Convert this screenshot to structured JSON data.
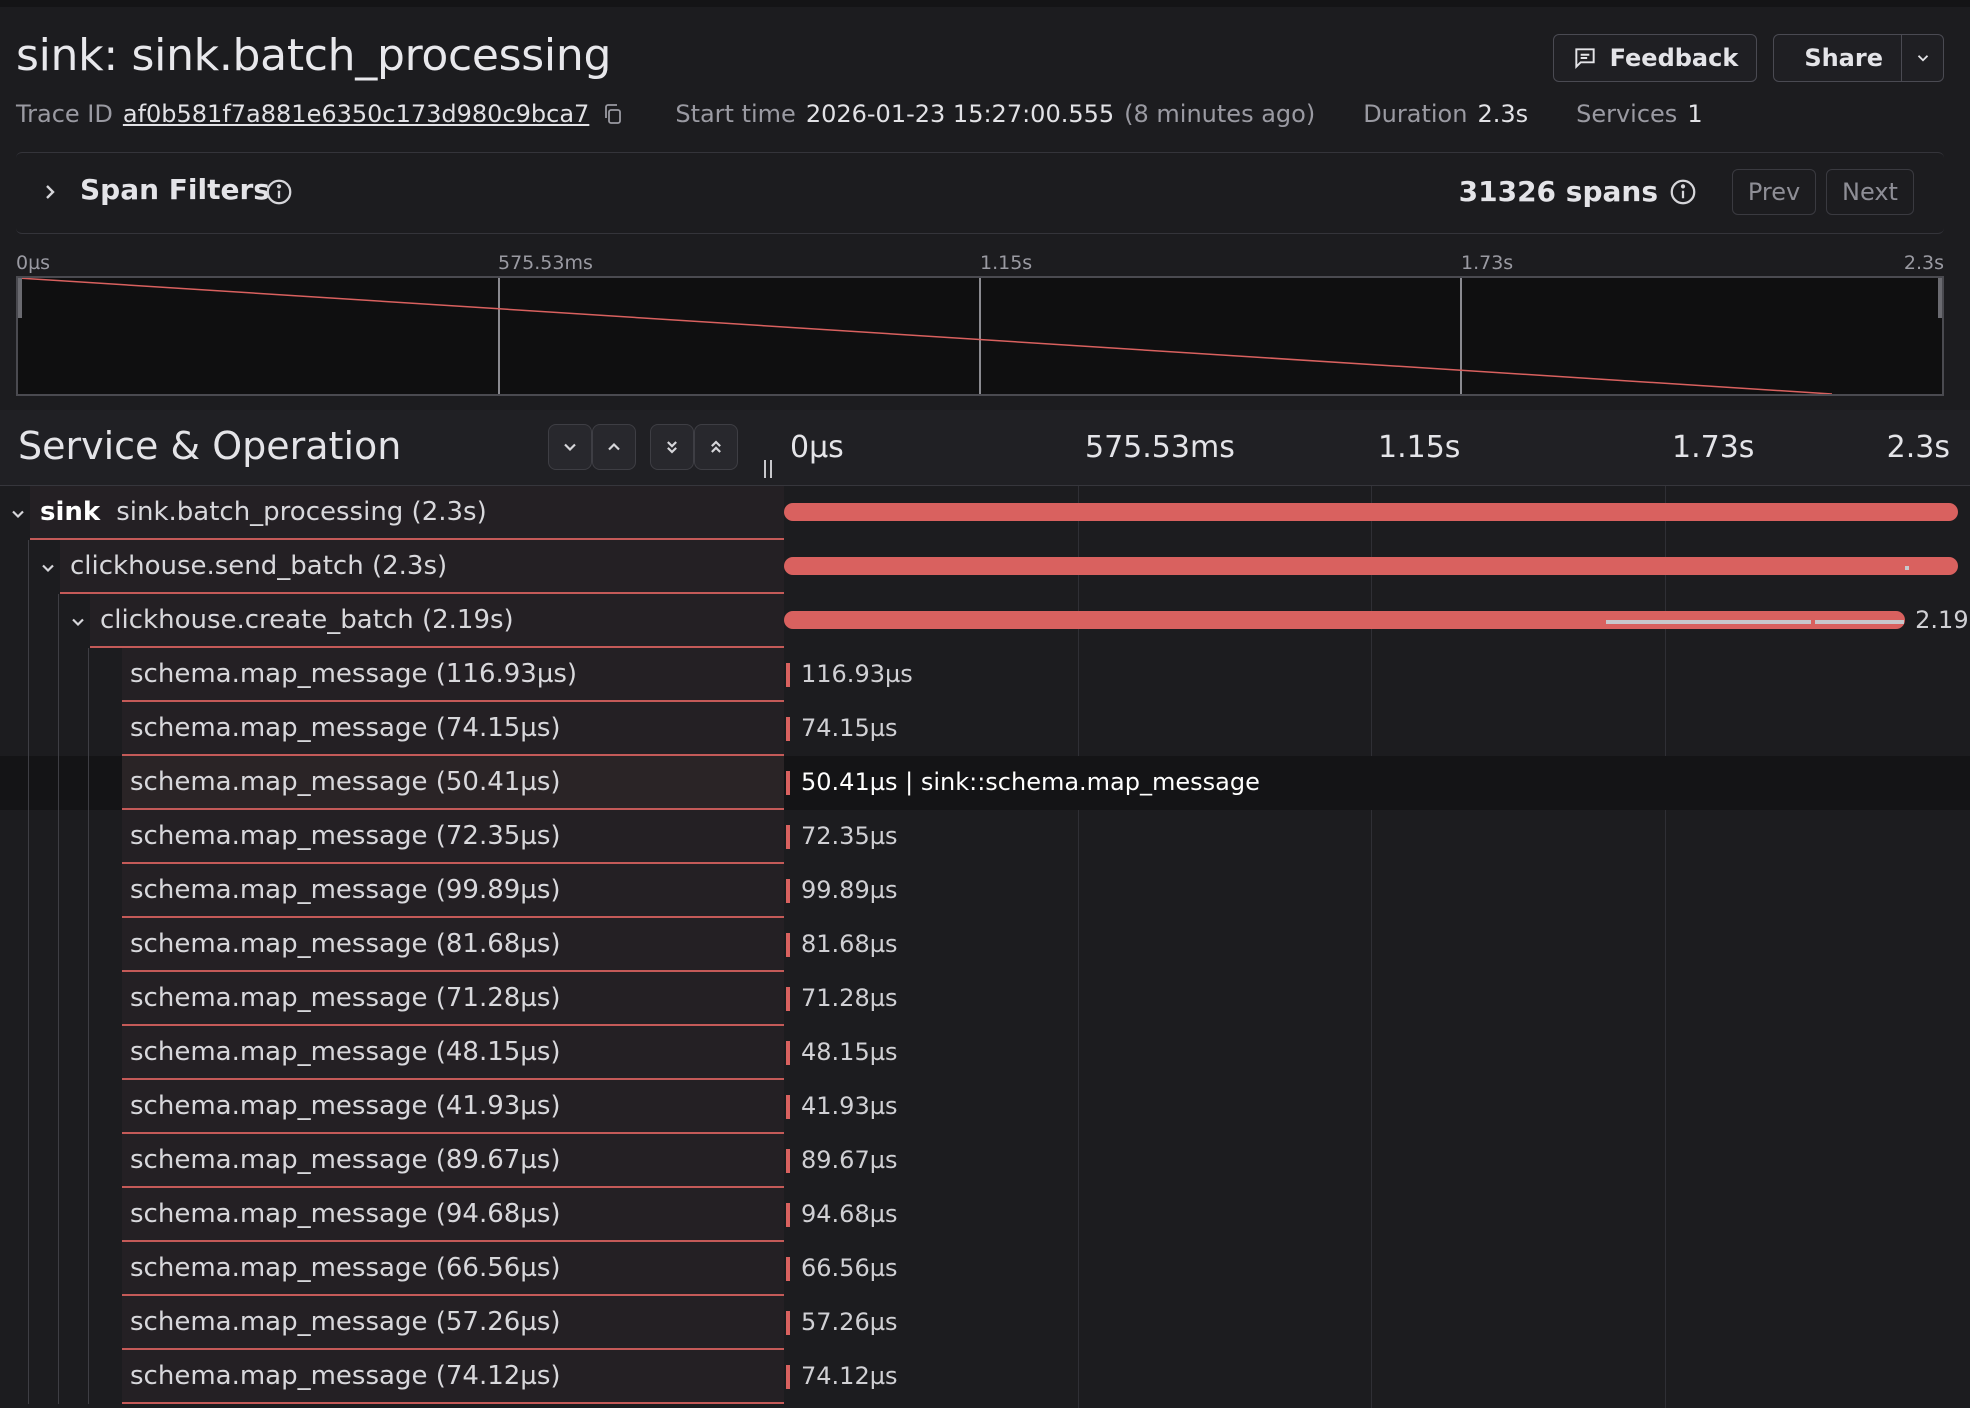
{
  "header": {
    "title": "sink: sink.batch_processing",
    "feedback_label": "Feedback",
    "share_label": "Share"
  },
  "meta": {
    "trace_id_label": "Trace ID",
    "trace_id": "af0b581f7a881e6350c173d980c9bca7",
    "start_time_label": "Start time",
    "start_time": "2026-01-23 15:27:00.555",
    "start_time_relative": "(8 minutes ago)",
    "duration_label": "Duration",
    "duration": "2.3s",
    "services_label": "Services",
    "services": "1"
  },
  "filters": {
    "label": "Span Filters",
    "span_count": "31326 spans",
    "prev_label": "Prev",
    "next_label": "Next"
  },
  "minimap_axis": [
    "0µs",
    "575.53ms",
    "1.15s",
    "1.73s",
    "2.3s"
  ],
  "trace": {
    "column_title": "Service & Operation",
    "timeline_ticks": [
      "0µs",
      "575.53ms",
      "1.15s",
      "1.73s",
      "2.3s"
    ],
    "rows": [
      {
        "service": "sink",
        "name": "sink.batch_processing (2.3s)",
        "depth": 0,
        "start": 0.0,
        "end": 1.0,
        "label": ""
      },
      {
        "service": "",
        "name": "clickhouse.send_batch (2.3s)",
        "depth": 1,
        "start": 0.0,
        "end": 1.0,
        "label": ""
      },
      {
        "service": "",
        "name": "clickhouse.create_batch (2.19s)",
        "depth": 2,
        "start": 0.0,
        "end": 0.955,
        "label": "2.19"
      },
      {
        "service": "",
        "name": "schema.map_message (116.93µs)",
        "depth": 3,
        "label": "116.93µs"
      },
      {
        "service": "",
        "name": "schema.map_message (74.15µs)",
        "depth": 3,
        "label": "74.15µs"
      },
      {
        "service": "",
        "name": "schema.map_message (50.41µs)",
        "depth": 3,
        "label": "50.41µs | sink::schema.map_message",
        "selected": true
      },
      {
        "service": "",
        "name": "schema.map_message (72.35µs)",
        "depth": 3,
        "label": "72.35µs"
      },
      {
        "service": "",
        "name": "schema.map_message (99.89µs)",
        "depth": 3,
        "label": "99.89µs"
      },
      {
        "service": "",
        "name": "schema.map_message (81.68µs)",
        "depth": 3,
        "label": "81.68µs"
      },
      {
        "service": "",
        "name": "schema.map_message (71.28µs)",
        "depth": 3,
        "label": "71.28µs"
      },
      {
        "service": "",
        "name": "schema.map_message (48.15µs)",
        "depth": 3,
        "label": "48.15µs"
      },
      {
        "service": "",
        "name": "schema.map_message (41.93µs)",
        "depth": 3,
        "label": "41.93µs"
      },
      {
        "service": "",
        "name": "schema.map_message (89.67µs)",
        "depth": 3,
        "label": "89.67µs"
      },
      {
        "service": "",
        "name": "schema.map_message (94.68µs)",
        "depth": 3,
        "label": "94.68µs"
      },
      {
        "service": "",
        "name": "schema.map_message (66.56µs)",
        "depth": 3,
        "label": "66.56µs"
      },
      {
        "service": "",
        "name": "schema.map_message (57.26µs)",
        "depth": 3,
        "label": "57.26µs"
      },
      {
        "service": "",
        "name": "schema.map_message (74.12µs)",
        "depth": 3,
        "label": "74.12µs"
      }
    ]
  },
  "colors": {
    "span_bar": "#d9615f",
    "background": "#1c1c1f"
  }
}
